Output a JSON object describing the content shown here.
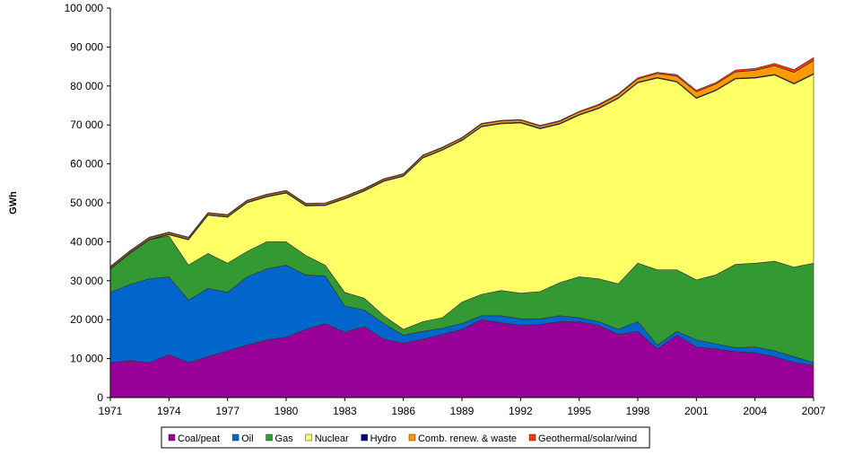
{
  "chart_data": {
    "type": "stacked-area",
    "y_label": "GWh",
    "x": [
      1971,
      1972,
      1973,
      1974,
      1975,
      1976,
      1977,
      1978,
      1979,
      1980,
      1981,
      1982,
      1983,
      1984,
      1985,
      1986,
      1987,
      1988,
      1989,
      1990,
      1991,
      1992,
      1993,
      1994,
      1995,
      1996,
      1997,
      1998,
      1999,
      2000,
      2001,
      2002,
      2003,
      2004,
      2005,
      2006,
      2007
    ],
    "xlim": [
      1971,
      2007
    ],
    "xticks": [
      1971,
      1974,
      1977,
      1980,
      1983,
      1986,
      1989,
      1992,
      1995,
      1998,
      2001,
      2004,
      2007
    ],
    "ylim": [
      0,
      100000
    ],
    "yticks": [
      {
        "value": 0,
        "label": "0"
      },
      {
        "value": 10000,
        "label": "10 000"
      },
      {
        "value": 20000,
        "label": "20 000"
      },
      {
        "value": 30000,
        "label": "30 000"
      },
      {
        "value": 40000,
        "label": "40 000"
      },
      {
        "value": 50000,
        "label": "50 000"
      },
      {
        "value": 60000,
        "label": "60 000"
      },
      {
        "value": 70000,
        "label": "70 000"
      },
      {
        "value": 80000,
        "label": "80 000"
      },
      {
        "value": 90000,
        "label": "90 000"
      },
      {
        "value": 100000,
        "label": "100 000"
      }
    ],
    "grid": false,
    "series": [
      {
        "name": "Coal/peat",
        "color": "#990099",
        "values": [
          9000,
          9500,
          9000,
          11000,
          9000,
          10500,
          12000,
          13500,
          14800,
          15500,
          17500,
          19000,
          16800,
          18200,
          15000,
          14000,
          15000,
          16200,
          17500,
          20000,
          19200,
          18500,
          18800,
          19500,
          19500,
          18500,
          16200,
          17000,
          12500,
          16000,
          13000,
          12500,
          11800,
          11500,
          10500,
          9000,
          8300
        ]
      },
      {
        "name": "Oil",
        "color": "#0066cc",
        "values": [
          18000,
          19500,
          21500,
          20000,
          16000,
          17500,
          15000,
          17500,
          18200,
          18500,
          14000,
          12200,
          6700,
          4300,
          4000,
          2000,
          2000,
          1600,
          1500,
          1000,
          1800,
          1700,
          1400,
          1500,
          1000,
          1000,
          1300,
          2500,
          1000,
          1000,
          1800,
          1300,
          1000,
          1500,
          1500,
          1500,
          700
        ]
      },
      {
        "name": "Gas",
        "color": "#339933",
        "values": [
          6000,
          8000,
          10000,
          10500,
          9000,
          9000,
          7500,
          6500,
          7000,
          6000,
          5000,
          2800,
          3500,
          3000,
          2000,
          1500,
          2500,
          2700,
          5500,
          5500,
          6500,
          6600,
          7000,
          8500,
          10500,
          11000,
          11700,
          15000,
          19300,
          15800,
          15400,
          17700,
          21400,
          21500,
          23000,
          23000,
          25500
        ]
      },
      {
        "name": "Nuclear",
        "color": "#ffff66",
        "values": [
          0,
          0,
          0,
          300,
          6500,
          9800,
          11800,
          12500,
          11500,
          12500,
          12700,
          15300,
          24000,
          27500,
          34500,
          39300,
          42000,
          43000,
          41500,
          43000,
          42800,
          43700,
          41800,
          40700,
          41500,
          43700,
          47600,
          46300,
          49200,
          48200,
          46600,
          47300,
          47600,
          47500,
          47800,
          47000,
          48500
        ]
      },
      {
        "name": "Hydro",
        "color": "#000080",
        "values": [
          200,
          200,
          200,
          200,
          200,
          200,
          200,
          200,
          200,
          200,
          200,
          200,
          200,
          200,
          200,
          200,
          200,
          200,
          200,
          200,
          200,
          200,
          200,
          200,
          200,
          200,
          200,
          200,
          200,
          200,
          200,
          200,
          200,
          200,
          200,
          200,
          200
        ]
      },
      {
        "name": "Comb. renew. & waste",
        "color": "#ff9900",
        "values": [
          300,
          300,
          300,
          300,
          300,
          300,
          300,
          300,
          300,
          300,
          300,
          300,
          300,
          300,
          300,
          300,
          400,
          400,
          400,
          500,
          500,
          500,
          500,
          500,
          600,
          600,
          700,
          800,
          1000,
          1300,
          1500,
          1500,
          1600,
          1800,
          2200,
          2800,
          3300
        ]
      },
      {
        "name": "Geothermal/solar/wind",
        "color": "#ff3300",
        "values": [
          200,
          200,
          200,
          200,
          200,
          200,
          200,
          200,
          200,
          200,
          200,
          200,
          200,
          200,
          200,
          200,
          200,
          200,
          200,
          200,
          200,
          200,
          200,
          200,
          200,
          300,
          300,
          300,
          300,
          400,
          400,
          400,
          500,
          500,
          600,
          700,
          800
        ]
      }
    ]
  }
}
